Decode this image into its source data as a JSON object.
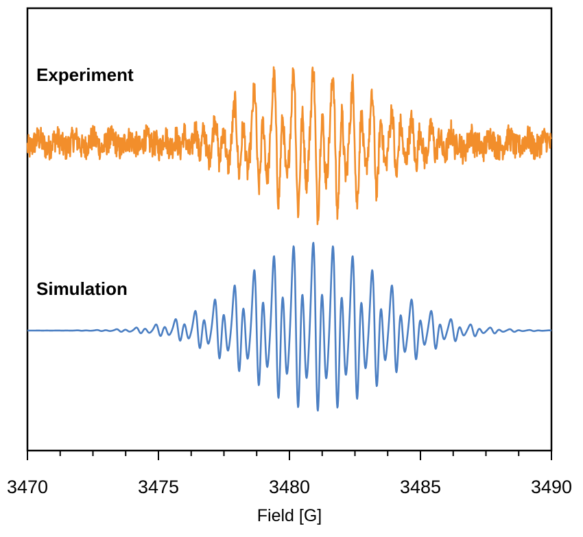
{
  "chart_data": {
    "type": "line",
    "xlabel": "Field [G]",
    "xlim": [
      3470,
      3490
    ],
    "x_ticks_major": [
      3470,
      3475,
      3480,
      3485,
      3490
    ],
    "x_ticks_minor_step": 1.25,
    "ylabel": "",
    "grid": false,
    "series": [
      {
        "name": "Experiment",
        "color": "#f28e2b",
        "baseline": 0.0,
        "envelope_center": 3481.0,
        "envelope_width": 2.6,
        "line_spacing_G": 0.75,
        "peak_max": 1.0,
        "peak_min": -1.0,
        "noisy": true
      },
      {
        "name": "Simulation",
        "color": "#4a7ec2",
        "baseline": 0.0,
        "envelope_center": 3481.0,
        "envelope_width": 2.6,
        "line_spacing_G": 0.75,
        "peak_max": 1.0,
        "peak_min": -1.0,
        "noisy": false
      }
    ]
  }
}
